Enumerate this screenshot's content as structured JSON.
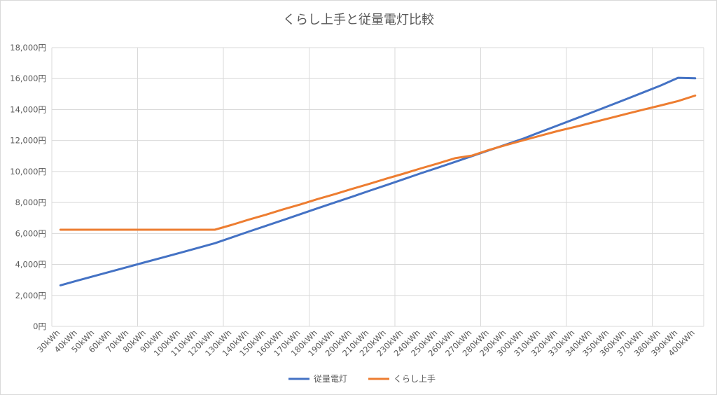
{
  "chart_data": {
    "type": "line",
    "title": "くらし上手と従量電灯比較",
    "xlabel": "",
    "ylabel": "",
    "categories": [
      "30kWh",
      "40kWh",
      "50kWh",
      "60kWh",
      "70kWh",
      "80kWh",
      "90kWh",
      "100kWh",
      "110kWh",
      "120kWh",
      "130kWh",
      "140kWh",
      "150kWh",
      "160kWh",
      "170kWh",
      "180kWh",
      "190kWh",
      "200kWh",
      "210kWh",
      "220kWh",
      "230kWh",
      "240kWh",
      "250kWh",
      "260kWh",
      "270kWh",
      "280kWh",
      "290kWh",
      "300kWh",
      "310kWh",
      "320kWh",
      "330kWh",
      "340kWh",
      "350kWh",
      "360kWh",
      "370kWh",
      "380kWh",
      "390kWh",
      "400kWh"
    ],
    "ylim": [
      0,
      18000
    ],
    "yticks": [
      0,
      2000,
      4000,
      6000,
      8000,
      10000,
      12000,
      14000,
      16000,
      18000
    ],
    "ytick_labels": [
      "0円",
      "2,000円",
      "4,000円",
      "6,000円",
      "8,000円",
      "10,000円",
      "12,000円",
      "14,000円",
      "16,000円",
      "18,000円"
    ],
    "grid": true,
    "legend_position": "bottom",
    "series": [
      {
        "name": "従量電灯",
        "color": "#4472c4",
        "values": [
          2650,
          2960,
          3260,
          3560,
          3860,
          4160,
          4460,
          4760,
          5060,
          5370,
          5750,
          6130,
          6500,
          6870,
          7250,
          7630,
          8000,
          8370,
          8750,
          9120,
          9500,
          9880,
          10250,
          10620,
          11000,
          11380,
          11750,
          12130,
          12560,
          12980,
          13400,
          13820,
          14250,
          14680,
          15120,
          15560,
          16050,
          16020
        ]
      },
      {
        "name": "くらし上手",
        "color": "#ed7d31",
        "values": [
          6240,
          6240,
          6240,
          6240,
          6240,
          6240,
          6240,
          6240,
          6240,
          6240,
          6560,
          6900,
          7220,
          7560,
          7880,
          8220,
          8540,
          8880,
          9200,
          9540,
          9860,
          10200,
          10520,
          10860,
          11030,
          11400,
          11720,
          12020,
          12320,
          12620,
          12880,
          13160,
          13440,
          13720,
          14000,
          14270,
          14550,
          14900
        ]
      }
    ]
  }
}
